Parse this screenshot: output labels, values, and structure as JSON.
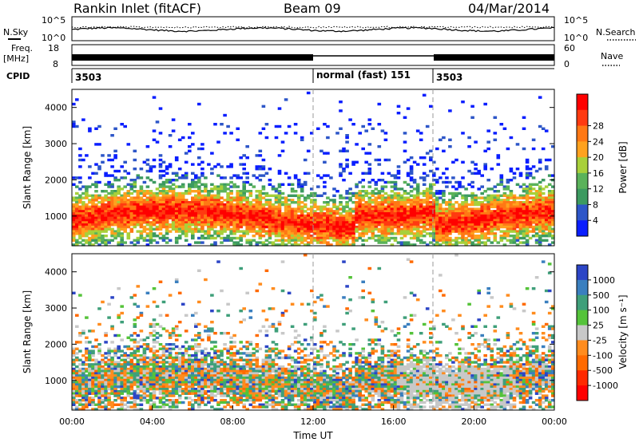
{
  "header": {
    "station": "Rankin Inlet (fitACF)",
    "beam": "Beam 09",
    "date": "04/Mar/2014"
  },
  "colors": {
    "power_scale": [
      "#0a1eff",
      "#2d56c8",
      "#3c9a60",
      "#5ab25a",
      "#a8d03a",
      "#ffa21f",
      "#ff7814",
      "#ff3a10",
      "#ff0000"
    ],
    "velocity_scale": [
      "#2c45c6",
      "#3a7fbf",
      "#3f9f7a",
      "#55c33a",
      "#c8c8c8",
      "#ff8c1e",
      "#ff6a00",
      "#ff2a00",
      "#ff0000"
    ]
  },
  "params_panel": {
    "nsky_label": "N.Sky",
    "freq_label": "Freq.",
    "freq_unit": "[MHz]",
    "nsearch_label": "N.Search",
    "nave_label": "Nave",
    "cpid_label": "CPID",
    "left_ticks_top": [
      "10^5",
      "10^0"
    ],
    "right_ticks_top": [
      "10^5",
      "10^0"
    ],
    "left_ticks_freq": [
      "18",
      "8"
    ],
    "right_ticks_nave": [
      "60",
      "0"
    ],
    "cpid_segments": [
      {
        "start_hour": 0,
        "label": "3503"
      },
      {
        "start_hour": 12,
        "label": "normal (fast) 151"
      },
      {
        "start_hour": 18,
        "label": "3503"
      }
    ]
  },
  "chart_data": [
    {
      "type": "heatmap",
      "title": "",
      "xlabel": "",
      "ylabel": "Slant Range [km]",
      "xlim": [
        0,
        24
      ],
      "ylim": [
        180,
        4500
      ],
      "yticks": [
        1000,
        2000,
        3000,
        4000
      ],
      "colorbar_label": "Power [dB]",
      "colorbar_ticks": [
        4,
        8,
        12,
        16,
        20,
        24,
        28
      ],
      "vlines_hours": [
        12,
        18
      ],
      "description_bands": [
        {
          "from_hour": 0,
          "to_hour": 24,
          "range_low": 500,
          "range_high": 1500,
          "value_db": 28
        }
      ]
    },
    {
      "type": "heatmap",
      "title": "",
      "xlabel": "Time UT",
      "ylabel": "Slant Range [km]",
      "xlim": [
        0,
        24
      ],
      "ylim": [
        180,
        4500
      ],
      "xticks": [
        "00:00",
        "04:00",
        "08:00",
        "12:00",
        "16:00",
        "20:00",
        "00:00"
      ],
      "yticks": [
        1000,
        2000,
        3000,
        4000
      ],
      "colorbar_label": "Velocity [m s⁻¹]",
      "colorbar_ticks": [
        1000,
        500,
        100,
        25,
        -25,
        -100,
        -500,
        -1000
      ],
      "vlines_hours": [
        12,
        18
      ]
    }
  ]
}
